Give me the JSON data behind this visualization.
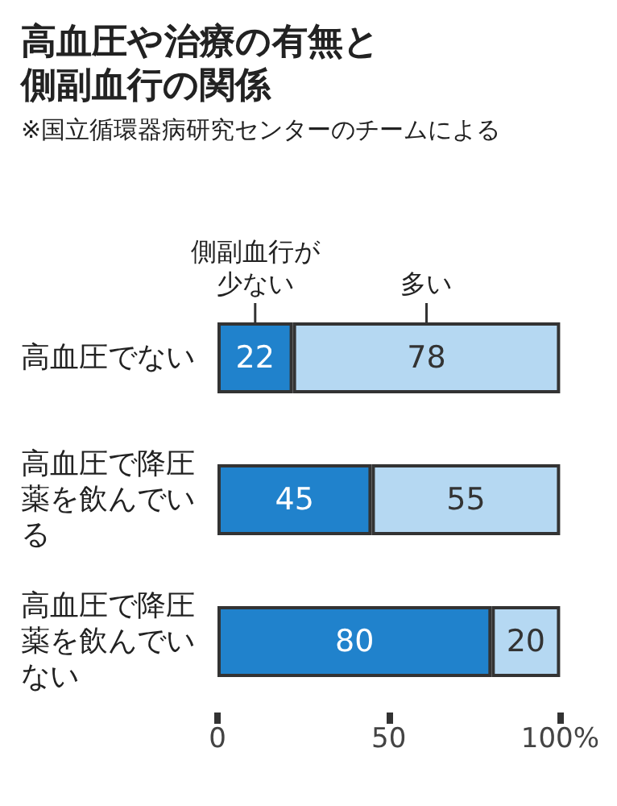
{
  "chart_data": {
    "type": "bar",
    "orientation": "horizontal",
    "stacked": true,
    "title": "高血圧や治療の有無と側副血行の関係",
    "subtitle": "※国立循環器病研究センターのチームによる",
    "categories": [
      "高血圧でない",
      "高血圧で降圧薬を飲んでいる",
      "高血圧で降圧薬を飲んでいない"
    ],
    "series": [
      {
        "name": "側副血行が少ない",
        "color": "#2082cc",
        "values": [
          22,
          45,
          80
        ]
      },
      {
        "name": "多い",
        "color": "#b5d8f2",
        "values": [
          78,
          55,
          20
        ]
      }
    ],
    "xlim": [
      0,
      100
    ],
    "xticks": [
      0,
      50,
      {
        "value": 100,
        "label": "100%"
      }
    ],
    "data_labels": true,
    "grid": false,
    "legend": false
  }
}
